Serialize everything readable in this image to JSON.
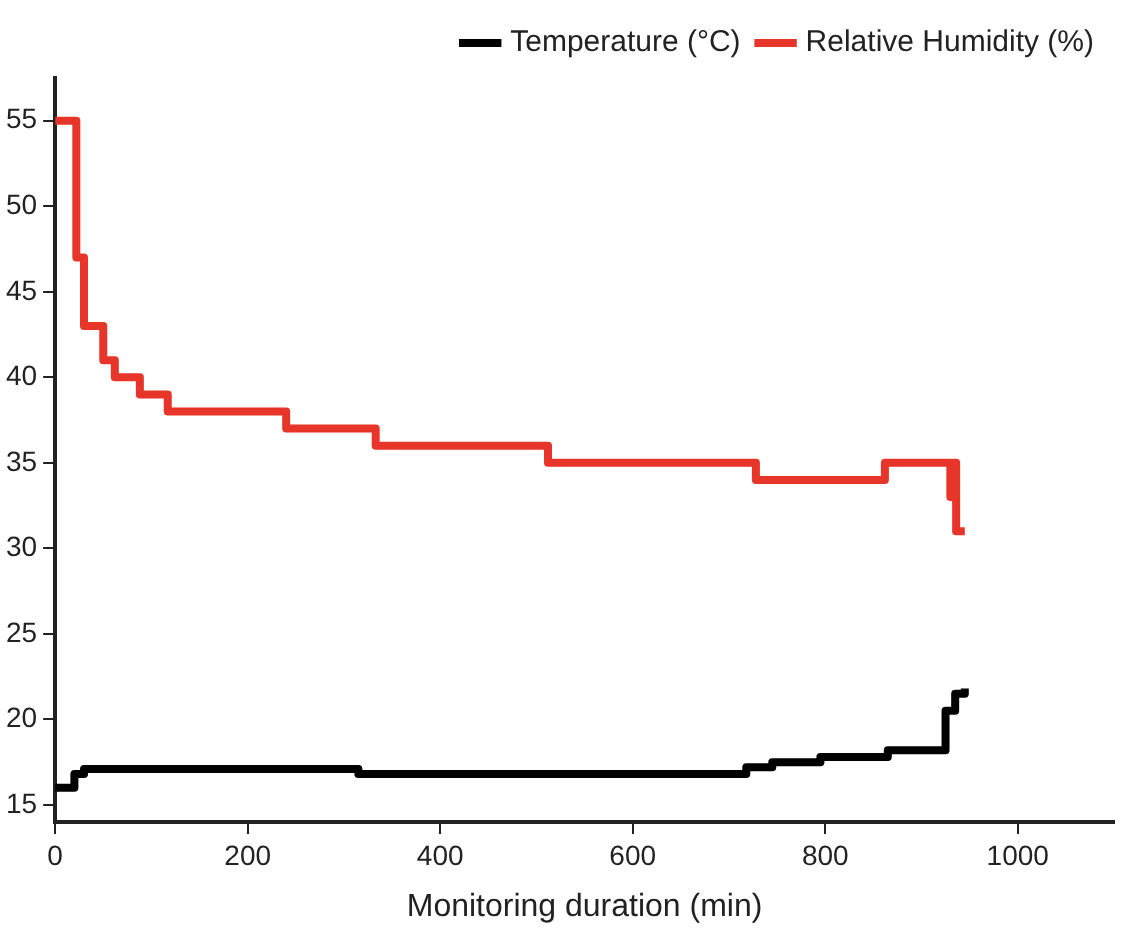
{
  "chart_data": {
    "type": "step",
    "xlabel": "Monitoring duration (min)",
    "xlim": [
      0,
      1100
    ],
    "xticks": [
      0,
      200,
      400,
      600,
      800,
      1000
    ],
    "ylim": [
      14,
      57.5
    ],
    "yticks": [
      15,
      20,
      25,
      30,
      35,
      40,
      45,
      50,
      55
    ],
    "grid": false,
    "legend": "top right",
    "marker": "none",
    "series": [
      {
        "name": "Temperature (°C)",
        "color": "#000000",
        "x": [
          0,
          20,
          30,
          315,
          718,
          745,
          795,
          865,
          925,
          935,
          945
        ],
        "values": [
          16,
          16.8,
          17.1,
          16.8,
          17.2,
          17.5,
          17.8,
          18.2,
          20.5,
          21.5,
          21.8
        ]
      },
      {
        "name": "Relative Humidity (%)",
        "color": "#e8352a",
        "x": [
          0,
          22,
          30,
          50,
          62,
          88,
          117,
          240,
          333,
          512,
          728,
          862,
          930,
          933,
          936,
          945
        ],
        "values": [
          55,
          47,
          43,
          41,
          40,
          39,
          38,
          37,
          36,
          35,
          34,
          35,
          33,
          35,
          31,
          31
        ]
      }
    ]
  }
}
